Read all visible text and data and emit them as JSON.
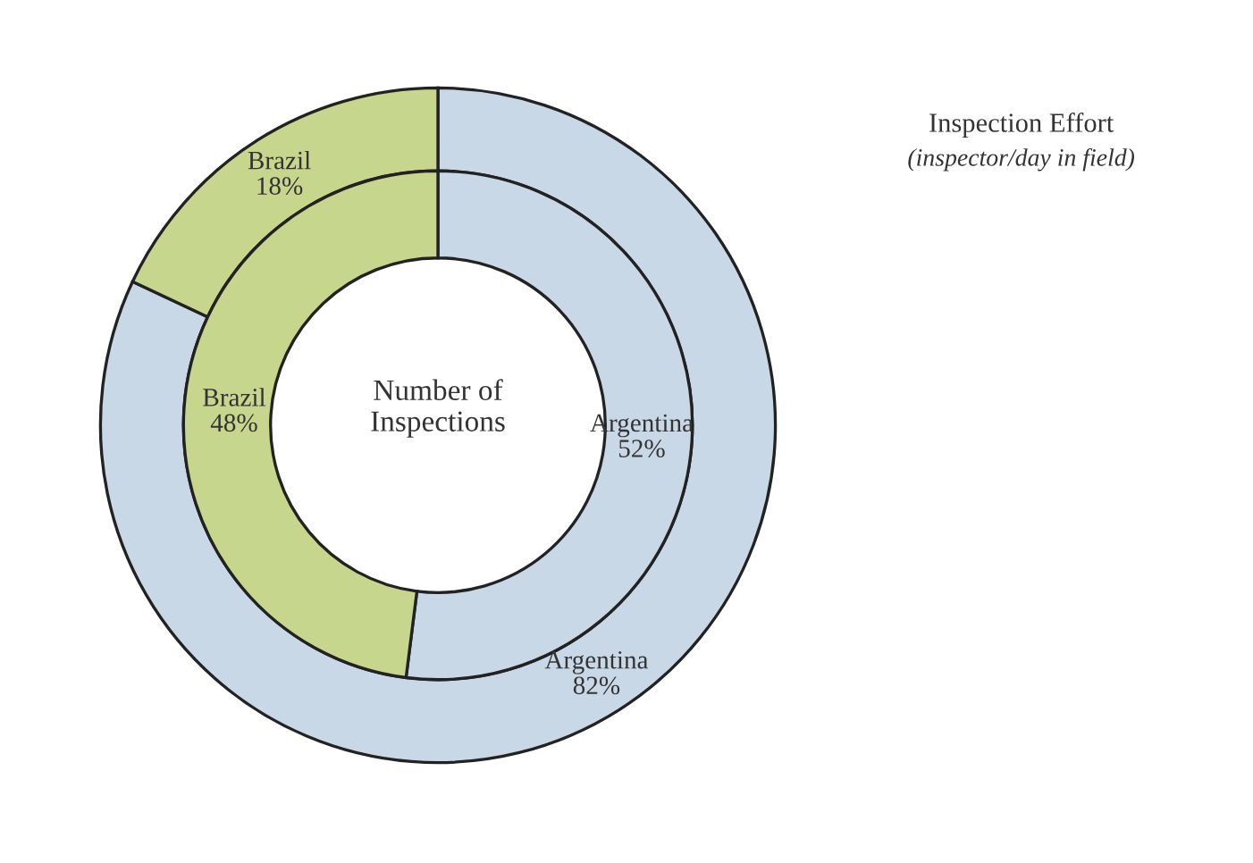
{
  "chart_data": {
    "type": "donut",
    "categories": [
      "Argentina",
      "Brazil"
    ],
    "colors": [
      "#c9d8e6",
      "#c6d68c"
    ],
    "series": [
      {
        "name": "Inspection Effort",
        "values": [
          82,
          18
        ],
        "value_labels": [
          "82%",
          "18%"
        ]
      },
      {
        "name": "Number of\nInspections",
        "values": [
          52,
          48
        ],
        "value_labels": [
          "52%",
          "48%"
        ]
      }
    ],
    "annotations": [
      "(inspector/day in field)"
    ],
    "legend": false
  }
}
